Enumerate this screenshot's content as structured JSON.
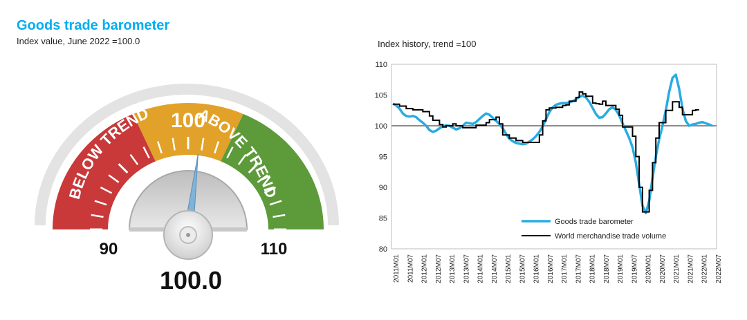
{
  "header": {
    "title": "Goods trade barometer",
    "subtitle": "Index value, June 2022 =100.0"
  },
  "gauge": {
    "value": 100.0,
    "value_label": "100.0",
    "min": 90,
    "max": 110,
    "min_label": "90",
    "max_label": "110",
    "center_label": "100",
    "below_label": "BELOW TREND",
    "above_label": "ABOVE TREND",
    "colors": {
      "below": "#c9393a",
      "middle": "#e2a128",
      "above": "#5d9a3a",
      "needle": "#7fb3d8"
    }
  },
  "chart_data": {
    "type": "line",
    "title": "Index history, trend =100",
    "xlabel": "",
    "ylabel": "",
    "ylim": [
      80,
      110
    ],
    "yticks": [
      "80",
      "85",
      "90",
      "95",
      "100",
      "105",
      "110"
    ],
    "xticks": [
      "2011M01",
      "2011M07",
      "2012M01",
      "2012M07",
      "2013M01",
      "2013M07",
      "2014M01",
      "2014M07",
      "2015M01",
      "2015M07",
      "2016M01",
      "2016M07",
      "2017M01",
      "2017M07",
      "2018M01",
      "2018M07",
      "2019M01",
      "2019M07",
      "2020M01",
      "2020M07",
      "2021M01",
      "2021M07",
      "2022M01",
      "2022M07"
    ],
    "reference_line": 100,
    "series": [
      {
        "name": "Goods trade barometer",
        "color": "#29abe2",
        "points": [
          [
            0,
            103.6
          ],
          [
            1,
            103.3
          ],
          [
            2,
            102.8
          ],
          [
            3,
            102.0
          ],
          [
            4,
            101.6
          ],
          [
            5,
            101.5
          ],
          [
            6,
            101.6
          ],
          [
            7,
            101.4
          ],
          [
            8,
            100.9
          ],
          [
            9,
            100.5
          ],
          [
            10,
            100.0
          ],
          [
            11,
            99.3
          ],
          [
            12,
            99.0
          ],
          [
            13,
            99.2
          ],
          [
            14,
            99.6
          ],
          [
            15,
            99.9
          ],
          [
            16,
            100.1
          ],
          [
            17,
            100.0
          ],
          [
            18,
            99.7
          ],
          [
            19,
            99.4
          ],
          [
            20,
            99.6
          ],
          [
            21,
            100.0
          ],
          [
            22,
            100.5
          ],
          [
            23,
            100.4
          ],
          [
            24,
            100.3
          ],
          [
            25,
            100.6
          ],
          [
            26,
            101.1
          ],
          [
            27,
            101.6
          ],
          [
            28,
            102.0
          ],
          [
            29,
            101.8
          ],
          [
            30,
            101.3
          ],
          [
            31,
            100.8
          ],
          [
            32,
            100.3
          ],
          [
            33,
            99.6
          ],
          [
            34,
            98.7
          ],
          [
            35,
            97.9
          ],
          [
            36,
            97.5
          ],
          [
            37,
            97.2
          ],
          [
            38,
            97.1
          ],
          [
            39,
            97.0
          ],
          [
            40,
            97.1
          ],
          [
            41,
            97.4
          ],
          [
            42,
            97.8
          ],
          [
            43,
            98.3
          ],
          [
            44,
            99.0
          ],
          [
            45,
            99.9
          ],
          [
            46,
            101.1
          ],
          [
            47,
            102.2
          ],
          [
            48,
            103.0
          ],
          [
            49,
            103.4
          ],
          [
            50,
            103.6
          ],
          [
            51,
            103.7
          ],
          [
            52,
            103.7
          ],
          [
            53,
            103.8
          ],
          [
            54,
            104.0
          ],
          [
            55,
            104.3
          ],
          [
            56,
            104.7
          ],
          [
            57,
            104.9
          ],
          [
            58,
            104.6
          ],
          [
            59,
            103.9
          ],
          [
            60,
            102.9
          ],
          [
            61,
            101.9
          ],
          [
            62,
            101.3
          ],
          [
            63,
            101.4
          ],
          [
            64,
            102.0
          ],
          [
            65,
            102.7
          ],
          [
            66,
            103.0
          ],
          [
            67,
            102.6
          ],
          [
            68,
            101.7
          ],
          [
            69,
            100.4
          ],
          [
            70,
            99.2
          ],
          [
            71,
            98.0
          ],
          [
            72,
            96.5
          ],
          [
            73,
            94.0
          ],
          [
            74,
            90.5
          ],
          [
            75,
            87.0
          ],
          [
            76,
            85.8
          ],
          [
            77,
            87.8
          ],
          [
            78,
            91.5
          ],
          [
            79,
            95.0
          ],
          [
            80,
            97.8
          ],
          [
            81,
            100.0
          ],
          [
            82,
            102.5
          ],
          [
            83,
            105.5
          ],
          [
            84,
            107.8
          ],
          [
            85,
            108.3
          ],
          [
            86,
            106.0
          ],
          [
            87,
            102.8
          ],
          [
            88,
            100.8
          ],
          [
            89,
            100.0
          ],
          [
            90,
            100.2
          ],
          [
            91,
            100.3
          ],
          [
            92,
            100.5
          ],
          [
            93,
            100.6
          ],
          [
            94,
            100.4
          ],
          [
            95,
            100.2
          ],
          [
            96,
            100.0
          ]
        ]
      },
      {
        "name": "World merchandise trade volume",
        "color": "#000000",
        "points": [
          [
            0,
            103.5
          ],
          [
            2,
            103.5
          ],
          [
            2,
            103.2
          ],
          [
            4,
            103.2
          ],
          [
            4,
            102.8
          ],
          [
            6,
            102.8
          ],
          [
            6,
            102.6
          ],
          [
            9,
            102.6
          ],
          [
            9,
            102.3
          ],
          [
            11,
            102.3
          ],
          [
            11,
            101.6
          ],
          [
            12,
            101.6
          ],
          [
            12,
            100.9
          ],
          [
            14,
            100.9
          ],
          [
            14,
            100.2
          ],
          [
            15,
            100.2
          ],
          [
            15,
            99.8
          ],
          [
            16,
            99.8
          ],
          [
            16,
            100.0
          ],
          [
            18,
            100.0
          ],
          [
            18,
            100.3
          ],
          [
            19,
            100.3
          ],
          [
            19,
            100.0
          ],
          [
            21,
            100.0
          ],
          [
            21,
            99.7
          ],
          [
            25,
            99.7
          ],
          [
            25,
            100.1
          ],
          [
            28,
            100.1
          ],
          [
            28,
            100.5
          ],
          [
            29,
            100.5
          ],
          [
            29,
            101.0
          ],
          [
            31,
            101.0
          ],
          [
            31,
            101.4
          ],
          [
            32,
            101.4
          ],
          [
            32,
            100.3
          ],
          [
            33,
            100.3
          ],
          [
            33,
            98.5
          ],
          [
            35,
            98.5
          ],
          [
            35,
            98.0
          ],
          [
            37,
            98.0
          ],
          [
            37,
            97.6
          ],
          [
            39,
            97.6
          ],
          [
            39,
            97.3
          ],
          [
            44,
            97.3
          ],
          [
            44,
            98.5
          ],
          [
            45,
            98.5
          ],
          [
            45,
            100.8
          ],
          [
            46,
            100.8
          ],
          [
            46,
            102.6
          ],
          [
            47,
            102.6
          ],
          [
            47,
            102.9
          ],
          [
            49,
            102.9
          ],
          [
            49,
            103.0
          ],
          [
            51,
            103.0
          ],
          [
            51,
            103.3
          ],
          [
            52,
            103.3
          ],
          [
            52,
            103.4
          ],
          [
            53,
            103.4
          ],
          [
            53,
            104.0
          ],
          [
            55,
            104.0
          ],
          [
            55,
            104.6
          ],
          [
            56,
            104.6
          ],
          [
            56,
            105.5
          ],
          [
            57,
            105.5
          ],
          [
            57,
            105.2
          ],
          [
            58,
            105.2
          ],
          [
            58,
            104.8
          ],
          [
            60,
            104.8
          ],
          [
            60,
            103.7
          ],
          [
            61,
            103.7
          ],
          [
            61,
            103.6
          ],
          [
            62,
            103.6
          ],
          [
            62,
            103.5
          ],
          [
            63,
            103.5
          ],
          [
            63,
            104.0
          ],
          [
            64,
            104.0
          ],
          [
            64,
            103.3
          ],
          [
            67,
            103.3
          ],
          [
            67,
            102.7
          ],
          [
            68,
            102.7
          ],
          [
            68,
            101.7
          ],
          [
            69,
            101.7
          ],
          [
            69,
            99.8
          ],
          [
            72,
            99.8
          ],
          [
            72,
            98.3
          ],
          [
            73,
            98.3
          ],
          [
            73,
            95.0
          ],
          [
            74,
            95.0
          ],
          [
            74,
            90.0
          ],
          [
            75,
            90.0
          ],
          [
            75,
            86.0
          ],
          [
            77,
            86.0
          ],
          [
            77,
            89.5
          ],
          [
            78,
            89.5
          ],
          [
            78,
            94.0
          ],
          [
            79,
            94.0
          ],
          [
            79,
            98.0
          ],
          [
            80,
            98.0
          ],
          [
            80,
            100.5
          ],
          [
            82,
            100.5
          ],
          [
            82,
            102.5
          ],
          [
            84,
            102.5
          ],
          [
            84,
            103.9
          ],
          [
            86,
            103.9
          ],
          [
            86,
            103.0
          ],
          [
            87,
            103.0
          ],
          [
            87,
            101.8
          ],
          [
            90,
            101.8
          ],
          [
            90,
            102.5
          ],
          [
            91,
            102.5
          ],
          [
            91,
            102.6
          ],
          [
            92,
            102.6
          ]
        ]
      }
    ],
    "legend": {
      "items": [
        "Goods trade barometer",
        "World merchandise trade volume"
      ],
      "position": "bottom-right"
    }
  }
}
